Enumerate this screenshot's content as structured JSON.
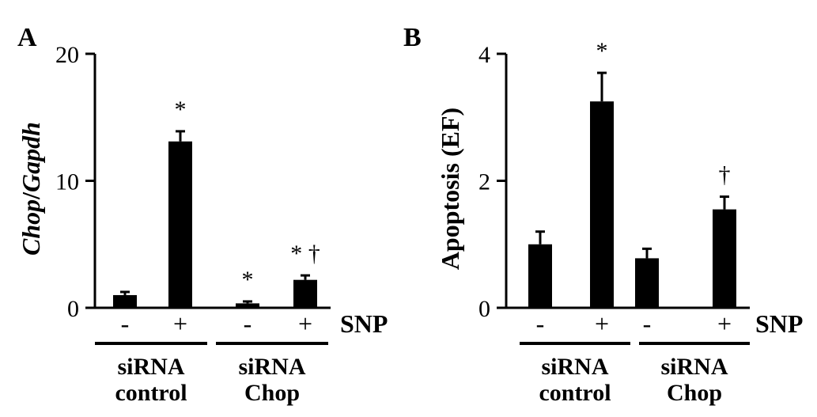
{
  "chart_data": [
    {
      "panel": "A",
      "type": "bar",
      "ylabel_parts": [
        "Chop",
        "/",
        "Gapdh"
      ],
      "ylabel_italic": [
        true,
        false,
        true
      ],
      "ylim": [
        0,
        20
      ],
      "yticks": [
        0,
        10,
        20
      ],
      "categories": [
        "-",
        "+",
        "-",
        "+"
      ],
      "values": [
        1.0,
        13.1,
        0.35,
        2.2
      ],
      "errors": [
        0.25,
        0.8,
        0.15,
        0.35
      ],
      "annotations": [
        "",
        "*",
        "*",
        "* †"
      ],
      "treatment_label": "SNP",
      "groups": [
        {
          "line1": "siRNA",
          "line2": "control"
        },
        {
          "line1": "siRNA",
          "line2": "Chop"
        }
      ]
    },
    {
      "panel": "B",
      "type": "bar",
      "ylabel_parts": [
        "Apoptosis (EF)"
      ],
      "ylabel_italic": [
        false
      ],
      "ylim": [
        0,
        4
      ],
      "yticks": [
        0,
        2,
        4
      ],
      "categories": [
        "-",
        "+",
        "-",
        "+"
      ],
      "values": [
        1.0,
        3.25,
        0.78,
        1.55
      ],
      "errors": [
        0.2,
        0.45,
        0.15,
        0.2
      ],
      "annotations": [
        "",
        "*",
        "",
        "†"
      ],
      "treatment_label": "SNP",
      "groups": [
        {
          "line1": "siRNA",
          "line2": "control"
        },
        {
          "line1": "siRNA",
          "line2": "Chop"
        }
      ]
    }
  ]
}
